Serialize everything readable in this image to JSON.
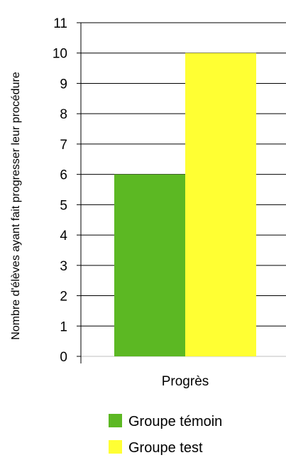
{
  "chart_data": {
    "type": "bar",
    "categories": [
      "Progrès"
    ],
    "series": [
      {
        "name": "Groupe témoin",
        "values": [
          6
        ],
        "color": "#5cb823"
      },
      {
        "name": "Groupe test",
        "values": [
          10
        ],
        "color": "#ffff33"
      }
    ],
    "ylabel": "Nombre d'élèves ayant fait progresser leur procédure",
    "xlabel": "",
    "ylim": [
      0,
      11
    ],
    "yticks": [
      "0",
      "1",
      "2",
      "3",
      "4",
      "5",
      "6",
      "7",
      "8",
      "9",
      "10",
      "11"
    ],
    "grid": true,
    "legend_position": "bottom"
  }
}
